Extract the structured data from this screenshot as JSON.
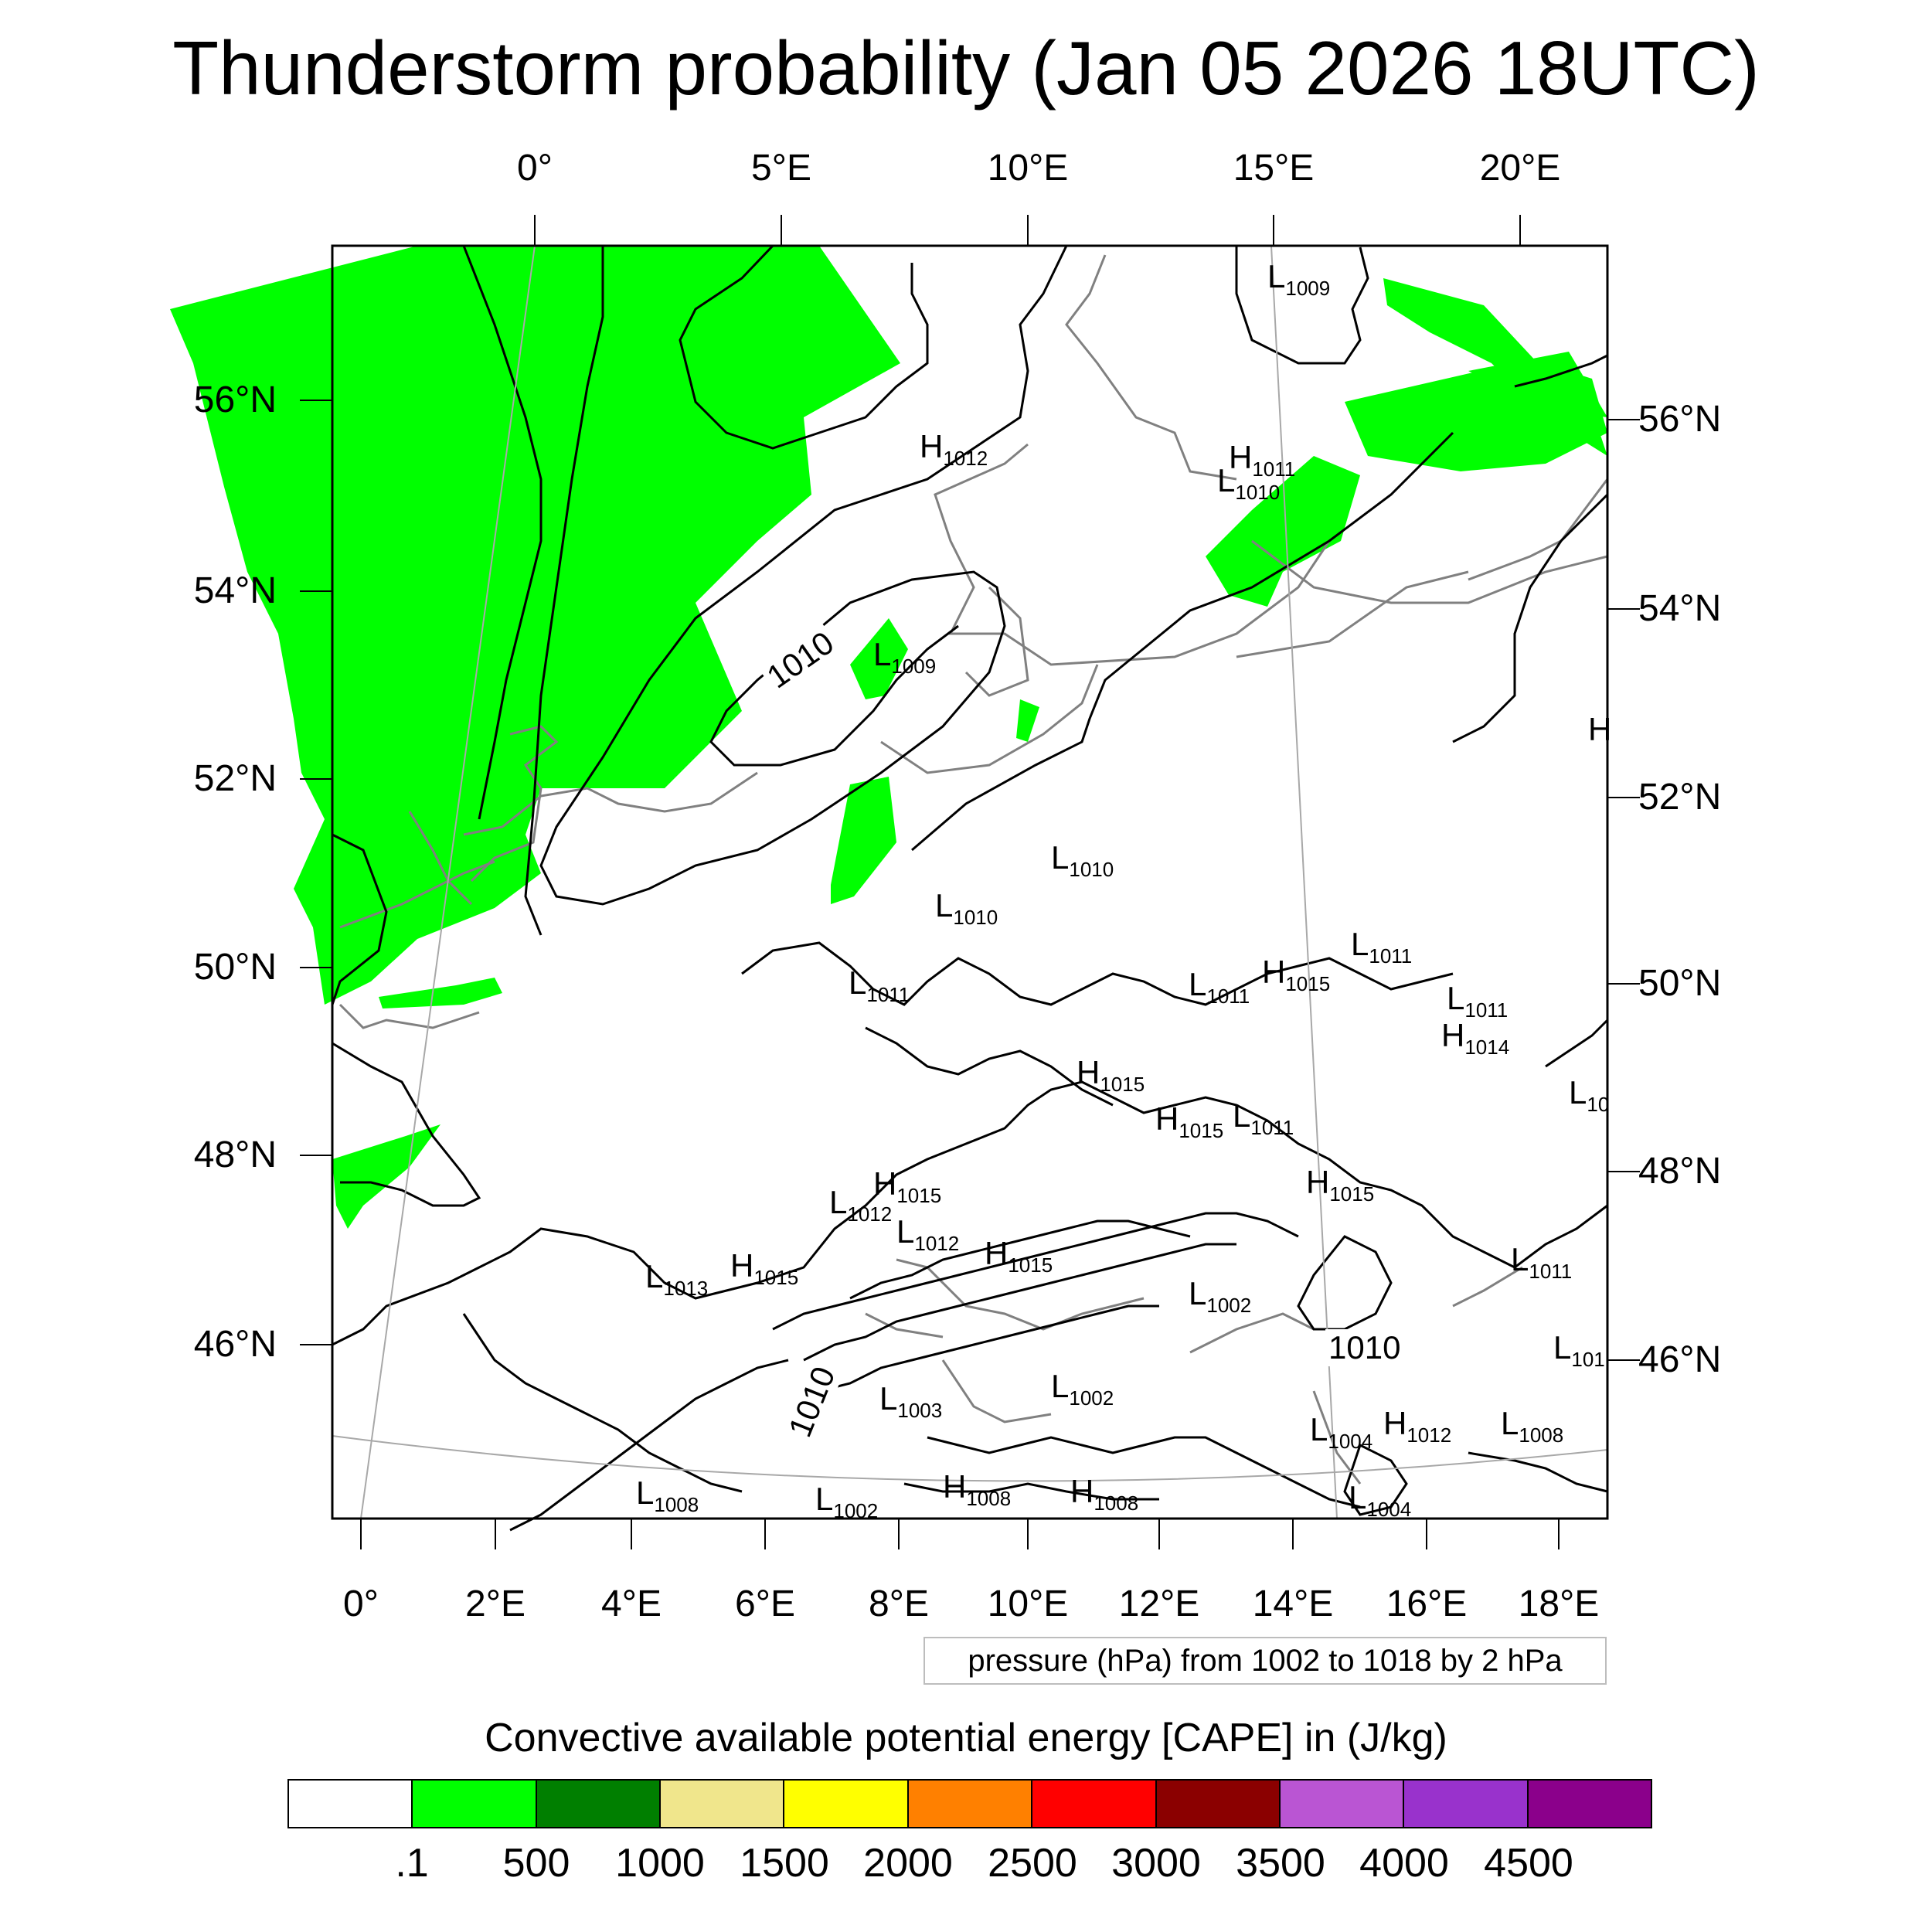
{
  "title": "Thunderstorm probability (Jan 05 2026 18UTC)",
  "map": {
    "top_lon_labels": [
      "0°",
      "5°E",
      "10°E",
      "15°E",
      "20°E"
    ],
    "bottom_lon_labels": [
      "0°",
      "2°E",
      "4°E",
      "6°E",
      "8°E",
      "10°E",
      "12°E",
      "14°E",
      "16°E",
      "18°E"
    ],
    "left_lat_labels": [
      "56°N",
      "54°N",
      "52°N",
      "50°N",
      "48°N",
      "46°N"
    ],
    "right_lat_labels": [
      "56°N",
      "54°N",
      "52°N",
      "50°N",
      "48°N",
      "46°N"
    ],
    "contour_labels": [
      "1010",
      "1010",
      "1010"
    ],
    "pressure_centers": [
      {
        "type": "L",
        "value": "1009"
      },
      {
        "type": "H",
        "value": "1012"
      },
      {
        "type": "H",
        "value": "1011"
      },
      {
        "type": "L",
        "value": "1010"
      },
      {
        "type": "L",
        "value": "1009"
      },
      {
        "type": "H",
        "value": ""
      },
      {
        "type": "L",
        "value": "1010"
      },
      {
        "type": "L",
        "value": "1010"
      },
      {
        "type": "L",
        "value": "1011"
      },
      {
        "type": "L",
        "value": "1011"
      },
      {
        "type": "H",
        "value": "1015"
      },
      {
        "type": "L",
        "value": "1011"
      },
      {
        "type": "L",
        "value": "1011"
      },
      {
        "type": "H",
        "value": "1014"
      },
      {
        "type": "H",
        "value": "1015"
      },
      {
        "type": "L",
        "value": "10"
      },
      {
        "type": "H",
        "value": "1015"
      },
      {
        "type": "L",
        "value": "1011"
      },
      {
        "type": "H",
        "value": "1015"
      },
      {
        "type": "H",
        "value": "1015"
      },
      {
        "type": "L",
        "value": "1012"
      },
      {
        "type": "L",
        "value": "1012"
      },
      {
        "type": "H",
        "value": "1015"
      },
      {
        "type": "L",
        "value": "1013"
      },
      {
        "type": "H",
        "value": "1015"
      },
      {
        "type": "L",
        "value": "1011"
      },
      {
        "type": "L",
        "value": "1002"
      },
      {
        "type": "L",
        "value": "101"
      },
      {
        "type": "L",
        "value": "1003"
      },
      {
        "type": "L",
        "value": "1002"
      },
      {
        "type": "L",
        "value": "1004"
      },
      {
        "type": "H",
        "value": "1012"
      },
      {
        "type": "L",
        "value": "1008"
      },
      {
        "type": "L",
        "value": "1008"
      },
      {
        "type": "L",
        "value": "1002"
      },
      {
        "type": "H",
        "value": "1008"
      },
      {
        "type": "H",
        "value": "1008"
      },
      {
        "type": "L",
        "value": "1004"
      }
    ]
  },
  "info_box": "pressure (hPa) from 1002 to 1018 by 2 hPa",
  "legend": {
    "title": "Convective available potential energy [CAPE] in (J/kg)",
    "colors": [
      "#ffffff",
      "#00ff00",
      "#007f00",
      "#f0e68c",
      "#ffff00",
      "#ff8000",
      "#ff0000",
      "#8b0000",
      "#ba55d3",
      "#9932cc",
      "#8b008b"
    ],
    "labels": [
      ".1",
      "500",
      "1000",
      "1500",
      "2000",
      "2500",
      "3000",
      "3500",
      "4000",
      "4500"
    ]
  }
}
